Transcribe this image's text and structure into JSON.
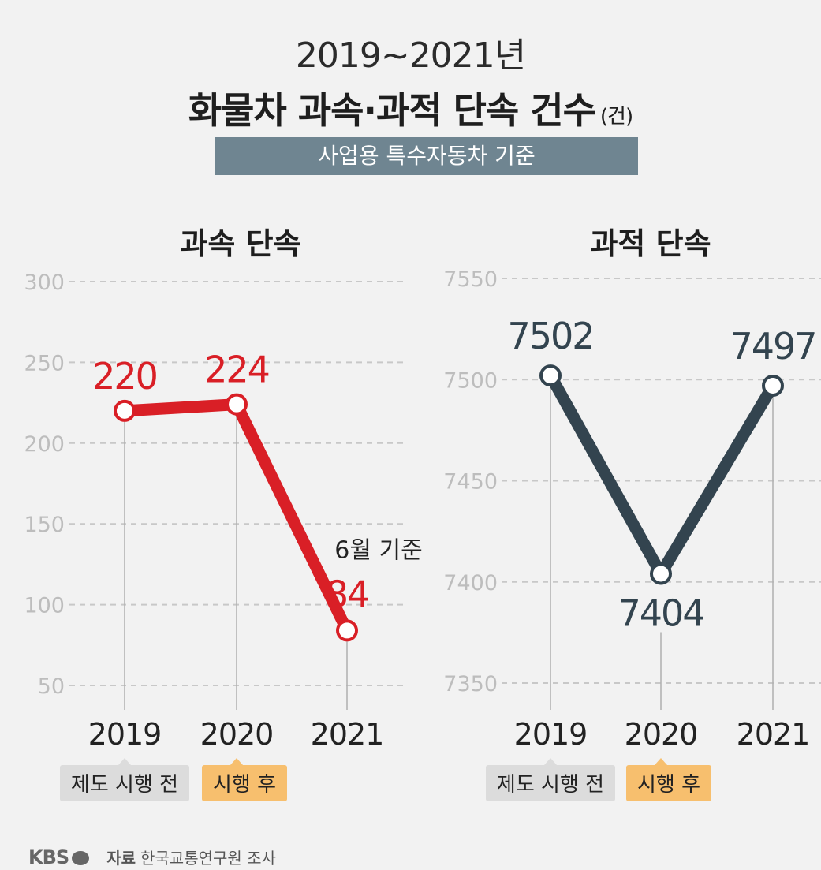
{
  "header": {
    "period": "2019~2021년",
    "title": "화물차 과속·과적 단속 건수",
    "unit": "(건)",
    "basis": "사업용 특수자동차 기준"
  },
  "colors": {
    "speeding": "#d91f26",
    "overload": "#33444f",
    "grid": "#c8c8c8",
    "tag_before": "#dcdcdc",
    "tag_after": "#f7bf6e"
  },
  "chart_data": [
    {
      "type": "line",
      "title": "과속 단속",
      "categories": [
        "2019",
        "2020",
        "2021"
      ],
      "values": [
        220,
        224,
        84
      ],
      "value_labels": [
        "220",
        "224",
        "84"
      ],
      "ylim": [
        50,
        300
      ],
      "yticks": [
        300,
        250,
        200,
        150,
        100,
        50
      ],
      "ytick_labels": [
        "300",
        "250",
        "200",
        "150",
        "100",
        "50"
      ],
      "annotation": "6월 기준",
      "tags": [
        "제도 시행 전",
        "시행 후"
      ],
      "grid": true
    },
    {
      "type": "line",
      "title": "과적 단속",
      "categories": [
        "2019",
        "2020",
        "2021"
      ],
      "values": [
        7502,
        7404,
        7497
      ],
      "value_labels": [
        "7502",
        "7404",
        "7497"
      ],
      "ylim": [
        7350,
        7550
      ],
      "yticks": [
        7550,
        7500,
        7450,
        7400,
        7350
      ],
      "ytick_labels": [
        "7550",
        "7500",
        "7450",
        "7400",
        "7350"
      ],
      "tags": [
        "제도 시행 전",
        "시행 후"
      ],
      "grid": true
    }
  ],
  "footer": {
    "logo": "KBS",
    "source_label": "자료",
    "source": "한국교통연구원 조사"
  }
}
